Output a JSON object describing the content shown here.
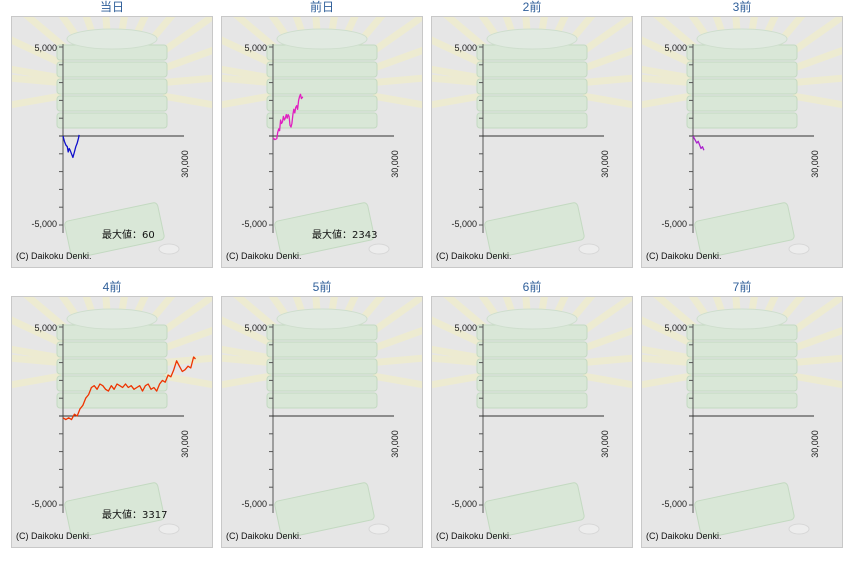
{
  "chart_data": [
    {
      "type": "line",
      "title": "当日",
      "ylim": [
        -5000,
        5000
      ],
      "yticks": [
        "5,000",
        "-5,000"
      ],
      "xtick": "30,000",
      "max_label": "最大値：60",
      "footer": "(C) Daikoku Denki.",
      "color": "#1010cc",
      "points": [
        [
          0,
          0
        ],
        [
          300,
          -300
        ],
        [
          600,
          -500
        ],
        [
          900,
          -600
        ],
        [
          1100,
          -900
        ],
        [
          1300,
          -700
        ],
        [
          1500,
          -800
        ],
        [
          1800,
          -1000
        ],
        [
          2100,
          -1200
        ],
        [
          2400,
          -900
        ],
        [
          2700,
          -600
        ],
        [
          3000,
          -400
        ],
        [
          3300,
          -100
        ],
        [
          3400,
          60
        ]
      ]
    },
    {
      "type": "line",
      "title": "前日",
      "ylim": [
        -5000,
        5000
      ],
      "yticks": [
        "5,000",
        "-5,000"
      ],
      "xtick": "30,000",
      "max_label": "最大値：2343",
      "footer": "(C) Daikoku Denki.",
      "color": "#e020c0",
      "points": [
        [
          0,
          -100
        ],
        [
          400,
          -200
        ],
        [
          800,
          -150
        ],
        [
          1000,
          200
        ],
        [
          1200,
          400
        ],
        [
          1400,
          300
        ],
        [
          1600,
          900
        ],
        [
          1800,
          700
        ],
        [
          2000,
          800
        ],
        [
          2200,
          1100
        ],
        [
          2400,
          900
        ],
        [
          2600,
          1000
        ],
        [
          2800,
          1200
        ],
        [
          3000,
          1000
        ],
        [
          3200,
          1200
        ],
        [
          3400,
          1100
        ],
        [
          3600,
          600
        ],
        [
          3800,
          500
        ],
        [
          4000,
          700
        ],
        [
          4200,
          1200
        ],
        [
          4400,
          1500
        ],
        [
          4600,
          1300
        ],
        [
          4800,
          1600
        ],
        [
          5000,
          1700
        ],
        [
          5200,
          1500
        ],
        [
          5400,
          2000
        ],
        [
          5600,
          2200
        ],
        [
          5800,
          2343
        ],
        [
          6000,
          2100
        ],
        [
          6300,
          2200
        ]
      ]
    },
    {
      "type": "line",
      "title": "2前",
      "ylim": [
        -5000,
        5000
      ],
      "yticks": [
        "5,000",
        "-5,000"
      ],
      "xtick": "30,000",
      "max_label": "",
      "footer": "(C) Daikoku Denki.",
      "color": "#333333",
      "points": []
    },
    {
      "type": "line",
      "title": "3前",
      "ylim": [
        -5000,
        5000
      ],
      "yticks": [
        "5,000",
        "-5,000"
      ],
      "xtick": "30,000",
      "max_label": "",
      "footer": "(C) Daikoku Denki.",
      "color": "#aa22cc",
      "points": [
        [
          0,
          0
        ],
        [
          400,
          -200
        ],
        [
          800,
          -400
        ],
        [
          1100,
          -300
        ],
        [
          1400,
          -500
        ],
        [
          1700,
          -700
        ],
        [
          2000,
          -600
        ],
        [
          2300,
          -800
        ]
      ]
    },
    {
      "type": "line",
      "title": "4前",
      "ylim": [
        -5000,
        5000
      ],
      "yticks": [
        "5,000",
        "-5,000"
      ],
      "xtick": "30,000",
      "max_label": "最大値：3317",
      "footer": "(C) Daikoku Denki.",
      "color": "#ee3300",
      "points": [
        [
          0,
          -100
        ],
        [
          600,
          -200
        ],
        [
          1200,
          -100
        ],
        [
          1800,
          -200
        ],
        [
          2400,
          100
        ],
        [
          3000,
          0
        ],
        [
          3600,
          400
        ],
        [
          4200,
          600
        ],
        [
          4800,
          1000
        ],
        [
          5400,
          1200
        ],
        [
          6000,
          1600
        ],
        [
          6600,
          1700
        ],
        [
          7200,
          1500
        ],
        [
          7800,
          1800
        ],
        [
          8400,
          1700
        ],
        [
          9000,
          1500
        ],
        [
          9600,
          1400
        ],
        [
          10200,
          1700
        ],
        [
          10800,
          1500
        ],
        [
          11400,
          1800
        ],
        [
          12000,
          1700
        ],
        [
          12600,
          1600
        ],
        [
          13200,
          1800
        ],
        [
          13800,
          1600
        ],
        [
          14400,
          1700
        ],
        [
          15000,
          1500
        ],
        [
          15600,
          1600
        ],
        [
          16200,
          1700
        ],
        [
          16800,
          1400
        ],
        [
          17400,
          1700
        ],
        [
          18000,
          1800
        ],
        [
          18600,
          1500
        ],
        [
          19200,
          1600
        ],
        [
          19800,
          1400
        ],
        [
          20400,
          1800
        ],
        [
          21000,
          2000
        ],
        [
          21600,
          1900
        ],
        [
          22200,
          2300
        ],
        [
          22800,
          2200
        ],
        [
          23400,
          2600
        ],
        [
          24000,
          3100
        ],
        [
          24600,
          2800
        ],
        [
          25200,
          2500
        ],
        [
          25800,
          2600
        ],
        [
          26400,
          2800
        ],
        [
          27000,
          2700
        ],
        [
          27600,
          3317
        ],
        [
          28000,
          3200
        ]
      ]
    },
    {
      "type": "line",
      "title": "5前",
      "ylim": [
        -5000,
        5000
      ],
      "yticks": [
        "5,000",
        "-5,000"
      ],
      "xtick": "30,000",
      "max_label": "",
      "footer": "(C) Daikoku Denki.",
      "color": "#333333",
      "points": []
    },
    {
      "type": "line",
      "title": "6前",
      "ylim": [
        -5000,
        5000
      ],
      "yticks": [
        "5,000",
        "-5,000"
      ],
      "xtick": "30,000",
      "max_label": "",
      "footer": "(C) Daikoku Denki.",
      "color": "#333333",
      "points": []
    },
    {
      "type": "line",
      "title": "7前",
      "ylim": [
        -5000,
        5000
      ],
      "yticks": [
        "5,000",
        "-5,000"
      ],
      "xtick": "30,000",
      "max_label": "",
      "footer": "(C) Daikoku Denki.",
      "color": "#333333",
      "points": []
    }
  ]
}
